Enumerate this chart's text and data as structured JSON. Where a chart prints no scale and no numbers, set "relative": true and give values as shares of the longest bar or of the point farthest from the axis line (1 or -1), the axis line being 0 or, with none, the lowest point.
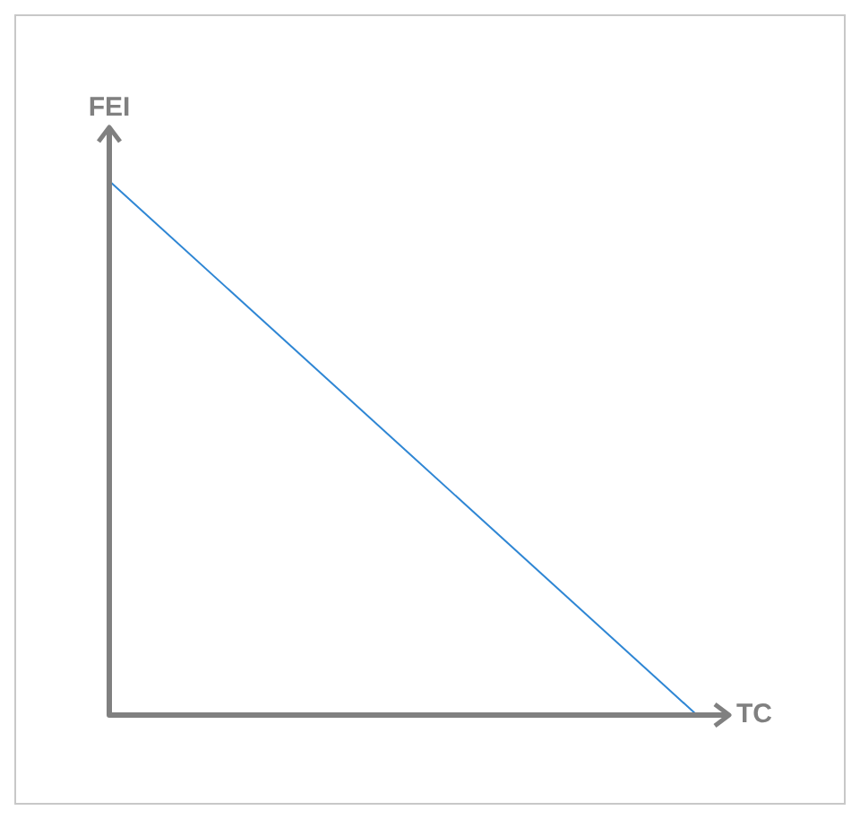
{
  "chart_data": {
    "type": "line",
    "xlabel": "TC",
    "ylabel": "FEI",
    "relative": true,
    "categories": [
      null,
      null
    ],
    "series": [
      {
        "color": "#2e86d4",
        "values": [
          1,
          0
        ]
      }
    ]
  }
}
